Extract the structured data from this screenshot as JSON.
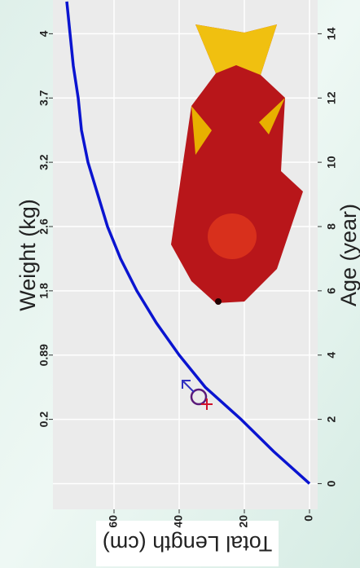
{
  "chart_data": {
    "type": "line",
    "x_label": "Age (year)",
    "y_label": "Total Length (cm)",
    "x2_label": "Weight (kg)",
    "x": [
      0,
      1,
      2,
      3,
      4,
      5,
      6,
      7,
      8,
      9,
      10,
      11,
      12,
      13,
      14,
      15
    ],
    "series": [
      {
        "color": "#0a14d0",
        "values": [
          0,
          11,
          21,
          32,
          40,
          47,
          53,
          58,
          62,
          65,
          68,
          70,
          71,
          72.5,
          73.5,
          74.5
        ]
      }
    ],
    "xlim": [
      -0.8,
      15.05
    ],
    "ylim": [
      -2.5,
      78.75
    ],
    "xticks": [
      0,
      2,
      4,
      6,
      8,
      10,
      12,
      14
    ],
    "yticks": [
      0,
      20,
      40,
      60
    ],
    "x2ticks": [
      {
        "value": 2,
        "label": "0.2"
      },
      {
        "value": 4,
        "label": "0.89"
      },
      {
        "value": 6,
        "label": "1.8"
      },
      {
        "value": 8,
        "label": "2.6"
      },
      {
        "value": 10,
        "label": "3.2"
      },
      {
        "value": 12,
        "label": "3.7"
      },
      {
        "value": 14,
        "label": "4"
      }
    ],
    "marker": {
      "x": 2.7,
      "y": 34
    },
    "grid": true
  }
}
